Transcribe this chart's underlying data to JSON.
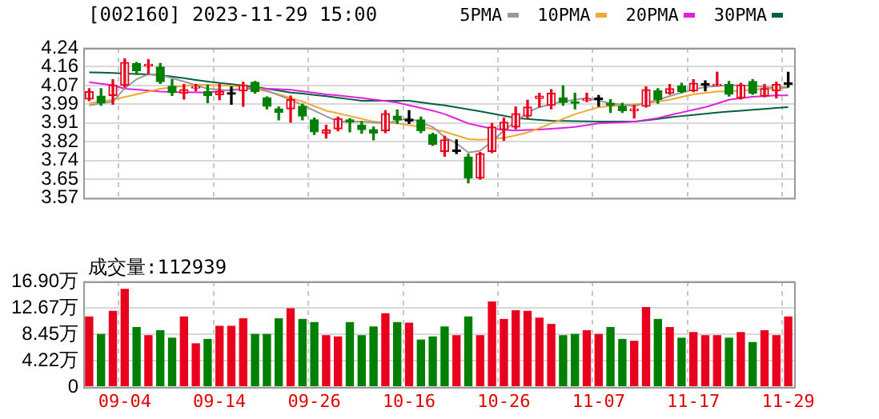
{
  "chart_data": [
    {
      "type": "candlestick",
      "title": "[002160] 2023-11-29 15:00",
      "legend": "top right",
      "grid": true,
      "tick_labels": "y",
      "categories": [
        null,
        null,
        null,
        null,
        null,
        null,
        null,
        null,
        null,
        null,
        null,
        null,
        null,
        null,
        null,
        null,
        null,
        null,
        null,
        null,
        null,
        null,
        null,
        null,
        null,
        null,
        null,
        null,
        null,
        null,
        null,
        null,
        null,
        null,
        null,
        null,
        null,
        null,
        null,
        null,
        null,
        null,
        null,
        null,
        null,
        null,
        null,
        null,
        null,
        null,
        null,
        null,
        null,
        null,
        null,
        null,
        null,
        null,
        null,
        null
      ],
      "ylim": [
        3.57,
        4.24
      ],
      "yticks": [
        3.57,
        {
          "value": 3.65375,
          "label": "3.65"
        },
        {
          "value": 3.7375,
          "label": "3.74"
        },
        {
          "value": 3.82125,
          "label": "3.82"
        },
        {
          "value": 3.905,
          "label": "3.91"
        },
        {
          "value": 3.98875,
          "label": "3.99"
        },
        {
          "value": 4.0725,
          "label": "4.07"
        },
        {
          "value": 4.15625,
          "label": "4.16"
        },
        4.24
      ],
      "ohlc": [
        [
          4.012,
          4.058,
          4.005,
          4.045
        ],
        [
          4.025,
          4.058,
          3.984,
          3.996
        ],
        [
          4.028,
          4.098,
          3.989,
          4.074
        ],
        [
          4.074,
          4.191,
          4.066,
          4.175
        ],
        [
          4.171,
          4.175,
          4.123,
          4.139
        ],
        [
          4.16,
          4.188,
          4.123,
          4.163
        ],
        [
          4.155,
          4.171,
          4.082,
          4.09
        ],
        [
          4.069,
          4.098,
          4.028,
          4.041
        ],
        [
          4.038,
          4.077,
          4.012,
          4.054
        ],
        [
          4.061,
          4.077,
          4.049,
          4.066
        ],
        [
          4.045,
          4.074,
          3.996,
          4.028
        ],
        [
          4.032,
          4.077,
          4.009,
          4.045
        ],
        [
          4.033,
          4.066,
          3.989,
          4.033
        ],
        [
          4.049,
          4.087,
          3.98,
          4.074
        ],
        [
          4.087,
          4.09,
          4.038,
          4.045
        ],
        [
          4.017,
          4.022,
          3.968,
          3.98
        ],
        [
          3.968,
          3.976,
          3.919,
          3.952
        ],
        [
          3.968,
          4.025,
          3.908,
          4.009
        ],
        [
          3.98,
          3.989,
          3.919,
          3.936
        ],
        [
          3.919,
          3.927,
          3.854,
          3.866
        ],
        [
          3.859,
          3.895,
          3.838,
          3.874
        ],
        [
          3.879,
          3.931,
          3.87,
          3.924
        ],
        [
          3.919,
          3.924,
          3.866,
          3.908
        ],
        [
          3.895,
          3.911,
          3.859,
          3.875
        ],
        [
          3.875,
          3.887,
          3.83,
          3.859
        ],
        [
          3.871,
          3.96,
          3.862,
          3.947
        ],
        [
          3.936,
          3.963,
          3.903,
          3.919
        ],
        [
          3.914,
          3.96,
          3.903,
          3.914
        ],
        [
          3.919,
          3.931,
          3.862,
          3.871
        ],
        [
          3.854,
          3.859,
          3.805,
          3.81
        ],
        [
          3.778,
          3.846,
          3.757,
          3.83
        ],
        [
          3.778,
          3.83,
          3.768,
          3.778
        ],
        [
          3.752,
          3.765,
          3.638,
          3.659
        ],
        [
          3.659,
          3.773,
          3.654,
          3.768
        ],
        [
          3.778,
          3.903,
          3.773,
          3.887
        ],
        [
          3.875,
          3.927,
          3.827,
          3.908
        ],
        [
          3.887,
          3.976,
          3.879,
          3.947
        ],
        [
          3.936,
          4.006,
          3.927,
          3.976
        ],
        [
          4.015,
          4.038,
          3.976,
          4.025
        ],
        [
          3.984,
          4.054,
          3.968,
          4.038
        ],
        [
          4.017,
          4.071,
          3.984,
          3.997
        ],
        [
          4.0,
          4.038,
          3.968,
          3.993
        ],
        [
          4.005,
          4.038,
          4.0,
          4.012
        ],
        [
          4.009,
          4.028,
          3.98,
          4.009
        ],
        [
          3.993,
          4.009,
          3.952,
          3.984
        ],
        [
          3.98,
          3.993,
          3.952,
          3.96
        ],
        [
          3.96,
          3.984,
          3.927,
          3.968
        ],
        [
          3.98,
          4.066,
          3.976,
          4.054
        ],
        [
          4.049,
          4.058,
          3.993,
          4.009
        ],
        [
          4.038,
          4.077,
          4.033,
          4.058
        ],
        [
          4.071,
          4.082,
          4.041,
          4.045
        ],
        [
          4.049,
          4.098,
          4.045,
          4.082
        ],
        [
          4.074,
          4.093,
          4.049,
          4.074
        ],
        [
          4.071,
          4.131,
          4.071,
          4.077
        ],
        [
          4.077,
          4.09,
          4.025,
          4.033
        ],
        [
          4.017,
          4.082,
          4.012,
          4.074
        ],
        [
          4.09,
          4.098,
          4.033,
          4.038
        ],
        [
          4.025,
          4.077,
          4.022,
          4.058
        ],
        [
          4.049,
          4.087,
          4.017,
          4.077
        ],
        [
          4.077,
          4.131,
          4.066,
          4.077
        ]
      ],
      "series": [
        {
          "name": "5PMA",
          "type": "line",
          "color": "#999999",
          "values": [
            3.984,
            3.993,
            4.001,
            4.06,
            4.1,
            4.123,
            4.119,
            4.105,
            4.09,
            4.074,
            4.058,
            4.054,
            4.049,
            4.058,
            4.066,
            4.049,
            4.029,
            4.009,
            3.985,
            3.96,
            3.935,
            3.911,
            3.911,
            3.911,
            3.907,
            3.903,
            3.915,
            3.927,
            3.907,
            3.887,
            3.842,
            3.814,
            3.773,
            3.781,
            3.822,
            3.871,
            3.911,
            3.952,
            3.976,
            3.989,
            4.001,
            4.009,
            4.017,
            4.005,
            3.993,
            3.987,
            3.98,
            3.995,
            4.009,
            4.025,
            4.041,
            4.054,
            4.066,
            4.07,
            4.074,
            4.073,
            4.071,
            4.066,
            4.061,
            4.066
          ]
        },
        {
          "name": "10PMA",
          "type": "line",
          "color": "#f0a830",
          "values": [
            3.993,
            4.001,
            4.009,
            4.021,
            4.033,
            4.045,
            4.058,
            4.064,
            4.07,
            4.077,
            4.075,
            4.073,
            4.071,
            4.065,
            4.058,
            4.046,
            4.033,
            4.017,
            4.001,
            3.98,
            3.96,
            3.948,
            3.936,
            3.924,
            3.911,
            3.907,
            3.903,
            3.895,
            3.887,
            3.878,
            3.866,
            3.85,
            3.833,
            3.83,
            3.834,
            3.838,
            3.85,
            3.862,
            3.882,
            3.903,
            3.923,
            3.944,
            3.96,
            3.976,
            3.98,
            3.984,
            3.988,
            3.993,
            4.001,
            4.009,
            4.021,
            4.033,
            4.039,
            4.045,
            4.047,
            4.049,
            4.054,
            4.058,
            4.06,
            4.062
          ]
        },
        {
          "name": "20PMA",
          "type": "line",
          "color": "#e020e0",
          "values": [
            4.087,
            4.08,
            4.074,
            4.058,
            4.054,
            4.05,
            4.045,
            4.044,
            4.043,
            4.042,
            4.041,
            4.047,
            4.053,
            4.058,
            4.058,
            4.058,
            4.056,
            4.053,
            4.046,
            4.04,
            4.033,
            4.028,
            4.022,
            4.017,
            4.01,
            4.003,
            3.996,
            3.984,
            3.972,
            3.96,
            3.945,
            3.924,
            3.903,
            3.891,
            3.879,
            3.875,
            3.871,
            3.874,
            3.876,
            3.879,
            3.883,
            3.887,
            3.895,
            3.903,
            3.906,
            3.908,
            3.911,
            3.919,
            3.927,
            3.94,
            3.952,
            3.964,
            3.976,
            3.992,
            4.009,
            4.016,
            4.022,
            4.025,
            4.028,
            4.028
          ]
        },
        {
          "name": "30PMA",
          "type": "line",
          "color": "#006040",
          "values": [
            4.131,
            4.13,
            4.128,
            4.126,
            4.124,
            4.122,
            4.119,
            4.112,
            4.105,
            4.097,
            4.09,
            4.084,
            4.078,
            4.072,
            4.066,
            4.058,
            4.05,
            4.041,
            4.036,
            4.03,
            4.025,
            4.018,
            4.011,
            4.004,
            4.004,
            4.004,
            4.004,
            4.004,
            3.997,
            3.99,
            3.984,
            3.975,
            3.966,
            3.957,
            3.947,
            3.937,
            3.927,
            3.923,
            3.919,
            3.915,
            3.914,
            3.913,
            3.912,
            3.911,
            3.911,
            3.911,
            3.911,
            3.917,
            3.923,
            3.93,
            3.936,
            3.941,
            3.946,
            3.952,
            3.956,
            3.96,
            3.964,
            3.968,
            3.972,
            3.976
          ]
        }
      ]
    },
    {
      "type": "bar",
      "title": "成交量:112939",
      "grid": true,
      "categories": [
        null,
        null,
        null,
        "09-04",
        null,
        null,
        null,
        null,
        null,
        null,
        null,
        "09-14",
        null,
        null,
        null,
        null,
        null,
        null,
        null,
        "09-26",
        null,
        null,
        null,
        null,
        null,
        null,
        null,
        "10-16",
        null,
        null,
        null,
        null,
        null,
        null,
        null,
        "10-26",
        null,
        null,
        null,
        null,
        null,
        null,
        null,
        "11-07",
        null,
        null,
        null,
        null,
        null,
        null,
        null,
        "11-17",
        null,
        null,
        null,
        null,
        null,
        null,
        null,
        "11-29"
      ],
      "ylim": [
        0,
        16.9
      ],
      "yticks": [
        0,
        {
          "value": 4.225,
          "label": "4.22万"
        },
        {
          "value": 8.45,
          "label": "8.45万"
        },
        {
          "value": 12.675,
          "label": "12.67万"
        },
        {
          "value": 16.9,
          "label": "16.90万"
        }
      ],
      "values": [
        11.3,
        8.5,
        12.2,
        15.7,
        9.6,
        8.3,
        9.1,
        7.9,
        11.3,
        7.0,
        7.7,
        9.8,
        9.8,
        11.0,
        8.5,
        8.5,
        11.0,
        12.6,
        10.9,
        10.4,
        8.3,
        8.1,
        10.4,
        8.3,
        9.7,
        11.8,
        10.4,
        10.3,
        7.6,
        8.1,
        9.7,
        8.3,
        11.3,
        8.3,
        13.7,
        10.9,
        12.3,
        12.2,
        11.1,
        10.1,
        8.3,
        8.5,
        9.1,
        8.5,
        9.6,
        7.7,
        7.4,
        12.8,
        10.9,
        9.6,
        7.9,
        8.8,
        8.3,
        8.3,
        7.9,
        8.8,
        7.2,
        9.1,
        8.3,
        11.3
      ],
      "colors": [
        "#e8001c",
        "#008000",
        "#e8001c",
        "#e8001c",
        "#008000",
        "#e8001c",
        "#008000",
        "#008000",
        "#e8001c",
        "#e8001c",
        "#008000",
        "#e8001c",
        "#e8001c",
        "#e8001c",
        "#008000",
        "#008000",
        "#008000",
        "#e8001c",
        "#008000",
        "#008000",
        "#e8001c",
        "#e8001c",
        "#008000",
        "#008000",
        "#008000",
        "#e8001c",
        "#008000",
        "#e8001c",
        "#008000",
        "#008000",
        "#008000",
        "#e8001c",
        "#008000",
        "#e8001c",
        "#e8001c",
        "#e8001c",
        "#e8001c",
        "#e8001c",
        "#e8001c",
        "#e8001c",
        "#008000",
        "#008000",
        "#e8001c",
        "#e8001c",
        "#008000",
        "#008000",
        "#e8001c",
        "#e8001c",
        "#008000",
        "#e8001c",
        "#008000",
        "#e8001c",
        "#e8001c",
        "#e8001c",
        "#008000",
        "#e8001c",
        "#008000",
        "#e8001c",
        "#e8001c",
        "#e8001c"
      ]
    }
  ]
}
